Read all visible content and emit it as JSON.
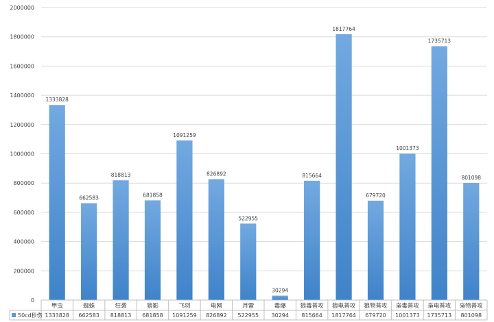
{
  "chart_data": {
    "type": "bar",
    "title": "",
    "xlabel": "",
    "ylabel": "",
    "ylim": [
      0,
      2000000
    ],
    "yticks": [
      0,
      200000,
      400000,
      600000,
      800000,
      1000000,
      1200000,
      1400000,
      1600000,
      1800000,
      2000000
    ],
    "grid": true,
    "legend_placement": "data-table-left",
    "categories": [
      "甲虫",
      "蜘蛛",
      "狂袭",
      "狼影",
      "飞羽",
      "电网",
      "月雷",
      "毒爆",
      "狼毒普攻",
      "狼电普攻",
      "狼物普攻",
      "枭毒普攻",
      "枭电普攻",
      "枭物普攻"
    ],
    "series": [
      {
        "name": "50cd秒伤",
        "color": "#5b9bd5",
        "values": [
          1333828,
          662583,
          818813,
          681858,
          1091259,
          826892,
          522955,
          30294,
          815664,
          1817764,
          679720,
          1001373,
          1735713,
          801098
        ]
      }
    ]
  }
}
